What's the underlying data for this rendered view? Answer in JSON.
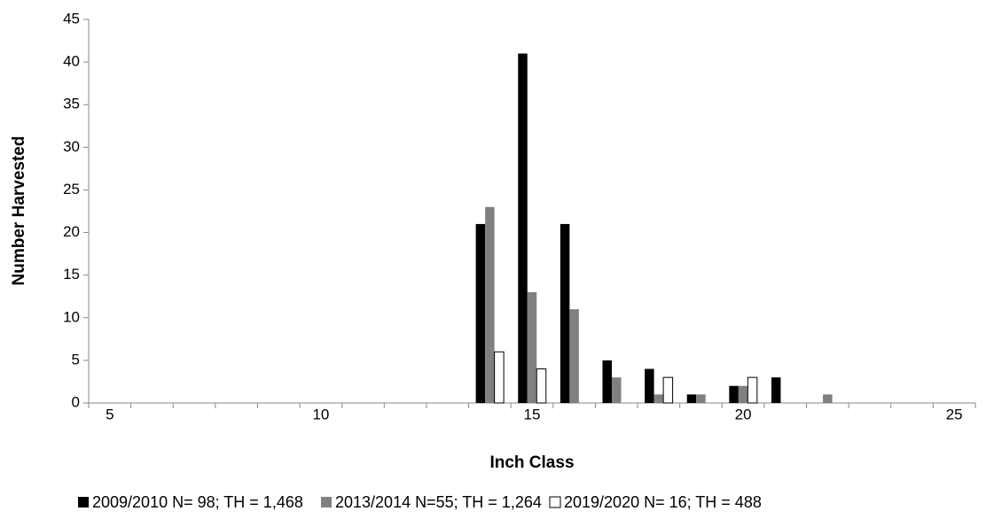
{
  "chart_data": {
    "type": "bar",
    "x_label": "Inch Class",
    "y_label": "Number Harvested",
    "categories": [
      "5",
      null,
      null,
      null,
      null,
      "10",
      null,
      null,
      null,
      null,
      "15",
      null,
      null,
      null,
      null,
      "20",
      null,
      null,
      null,
      null,
      "25"
    ],
    "series": [
      {
        "name": "2009/2010 N= 98; TH = 1,468",
        "color": "#000000",
        "values": [
          0,
          0,
          0,
          0,
          0,
          0,
          0,
          0,
          0,
          21,
          41,
          21,
          5,
          4,
          1,
          2,
          3,
          0,
          0,
          0,
          0
        ]
      },
      {
        "name": "2013/2014 N=55; TH = 1,264",
        "color": "#808080",
        "values": [
          0,
          0,
          0,
          0,
          0,
          0,
          0,
          0,
          0,
          23,
          13,
          11,
          3,
          1,
          1,
          2,
          0,
          1,
          0,
          0,
          0
        ]
      },
      {
        "name": "2019/2020 N= 16; TH = 488",
        "color": "#ffffff",
        "values": [
          0,
          0,
          0,
          0,
          0,
          0,
          0,
          0,
          0,
          6,
          4,
          0,
          0,
          3,
          0,
          3,
          0,
          0,
          0,
          0,
          0
        ]
      }
    ],
    "ylim": [
      0,
      45
    ],
    "yticks": [
      0,
      5,
      10,
      15,
      20,
      25,
      30,
      35,
      40,
      45
    ],
    "legend": "bottom"
  }
}
